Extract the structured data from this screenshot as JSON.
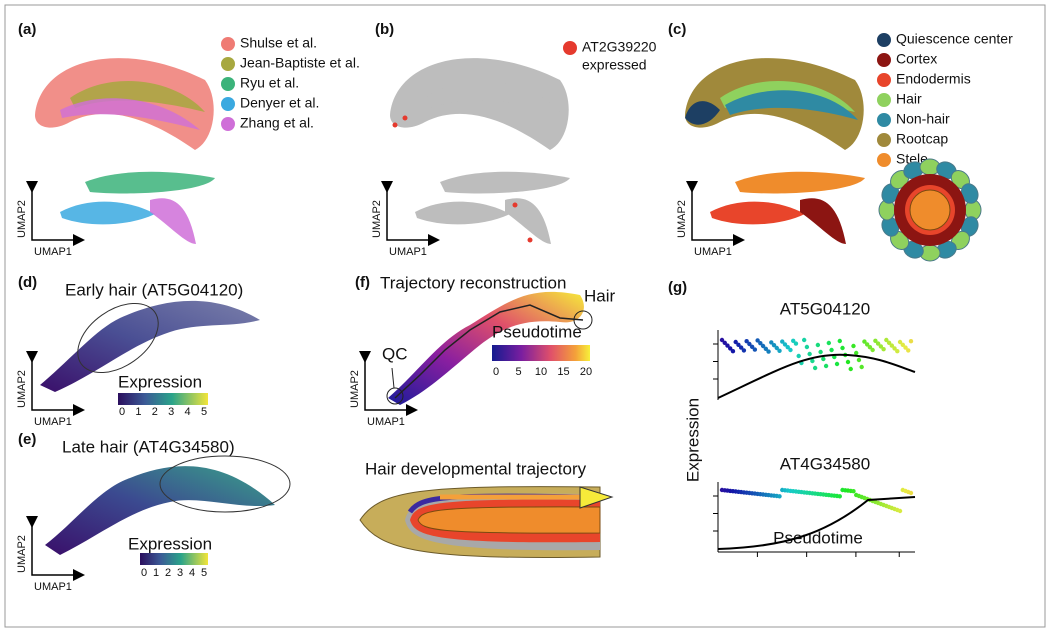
{
  "panels": {
    "a": {
      "label": "(a)",
      "x_axis": "UMAP1",
      "y_axis": "UMAP2",
      "legend": [
        {
          "name": "Shulse et al.",
          "color": "#ef7b74"
        },
        {
          "name": "Jean-Baptiste et al.",
          "color": "#a7a83f"
        },
        {
          "name": "Ryu et al.",
          "color": "#3bb37a"
        },
        {
          "name": "Denyer et al.",
          "color": "#3aa9e0"
        },
        {
          "name": "Zhang et al.",
          "color": "#cf6fd8"
        }
      ]
    },
    "b": {
      "label": "(b)",
      "x_axis": "UMAP1",
      "y_axis": "UMAP2",
      "legend": [
        {
          "name": "AT2G39220",
          "line2": "expressed",
          "color": "#e53a2e"
        }
      ]
    },
    "c": {
      "label": "(c)",
      "x_axis": "UMAP1",
      "y_axis": "UMAP2",
      "legend": [
        {
          "name": "Quiescence center",
          "color": "#1d3f63"
        },
        {
          "name": "Cortex",
          "color": "#8c1512"
        },
        {
          "name": "Endodermis",
          "color": "#e8452b"
        },
        {
          "name": "Hair",
          "color": "#8fd15e"
        },
        {
          "name": "Non-hair",
          "color": "#2f8aa3"
        },
        {
          "name": "Rootcap",
          "color": "#a0893b"
        },
        {
          "name": "Stele",
          "color": "#ef8c2c"
        }
      ]
    },
    "d": {
      "label": "(d)",
      "title": "Early hair (AT5G04120)",
      "x_axis": "UMAP1",
      "y_axis": "UMAP2",
      "colorbar_title": "Expression",
      "colorbar_ticks": [
        "0",
        "1",
        "2",
        "3",
        "4",
        "5"
      ]
    },
    "e": {
      "label": "(e)",
      "title": "Late hair (AT4G34580)",
      "x_axis": "UMAP1",
      "y_axis": "UMAP2",
      "colorbar_title": "Expression",
      "colorbar_ticks": [
        "0",
        "1",
        "2",
        "3",
        "4",
        "5"
      ]
    },
    "f": {
      "label": "(f)",
      "title": "Trajectory reconstruction",
      "end_label": "Hair",
      "start_label": "QC",
      "x_axis": "UMAP1",
      "y_axis": "UMAP2",
      "colorbar_title": "Pseudotime",
      "colorbar_ticks": [
        "0",
        "5",
        "10",
        "15",
        "20"
      ],
      "subtitle": "Hair developmental trajectory"
    },
    "g": {
      "label": "(g)",
      "genes": [
        "AT5G04120",
        "AT4G34580"
      ],
      "y_axis": "Expression",
      "x_axis": "Pseudotime"
    }
  }
}
